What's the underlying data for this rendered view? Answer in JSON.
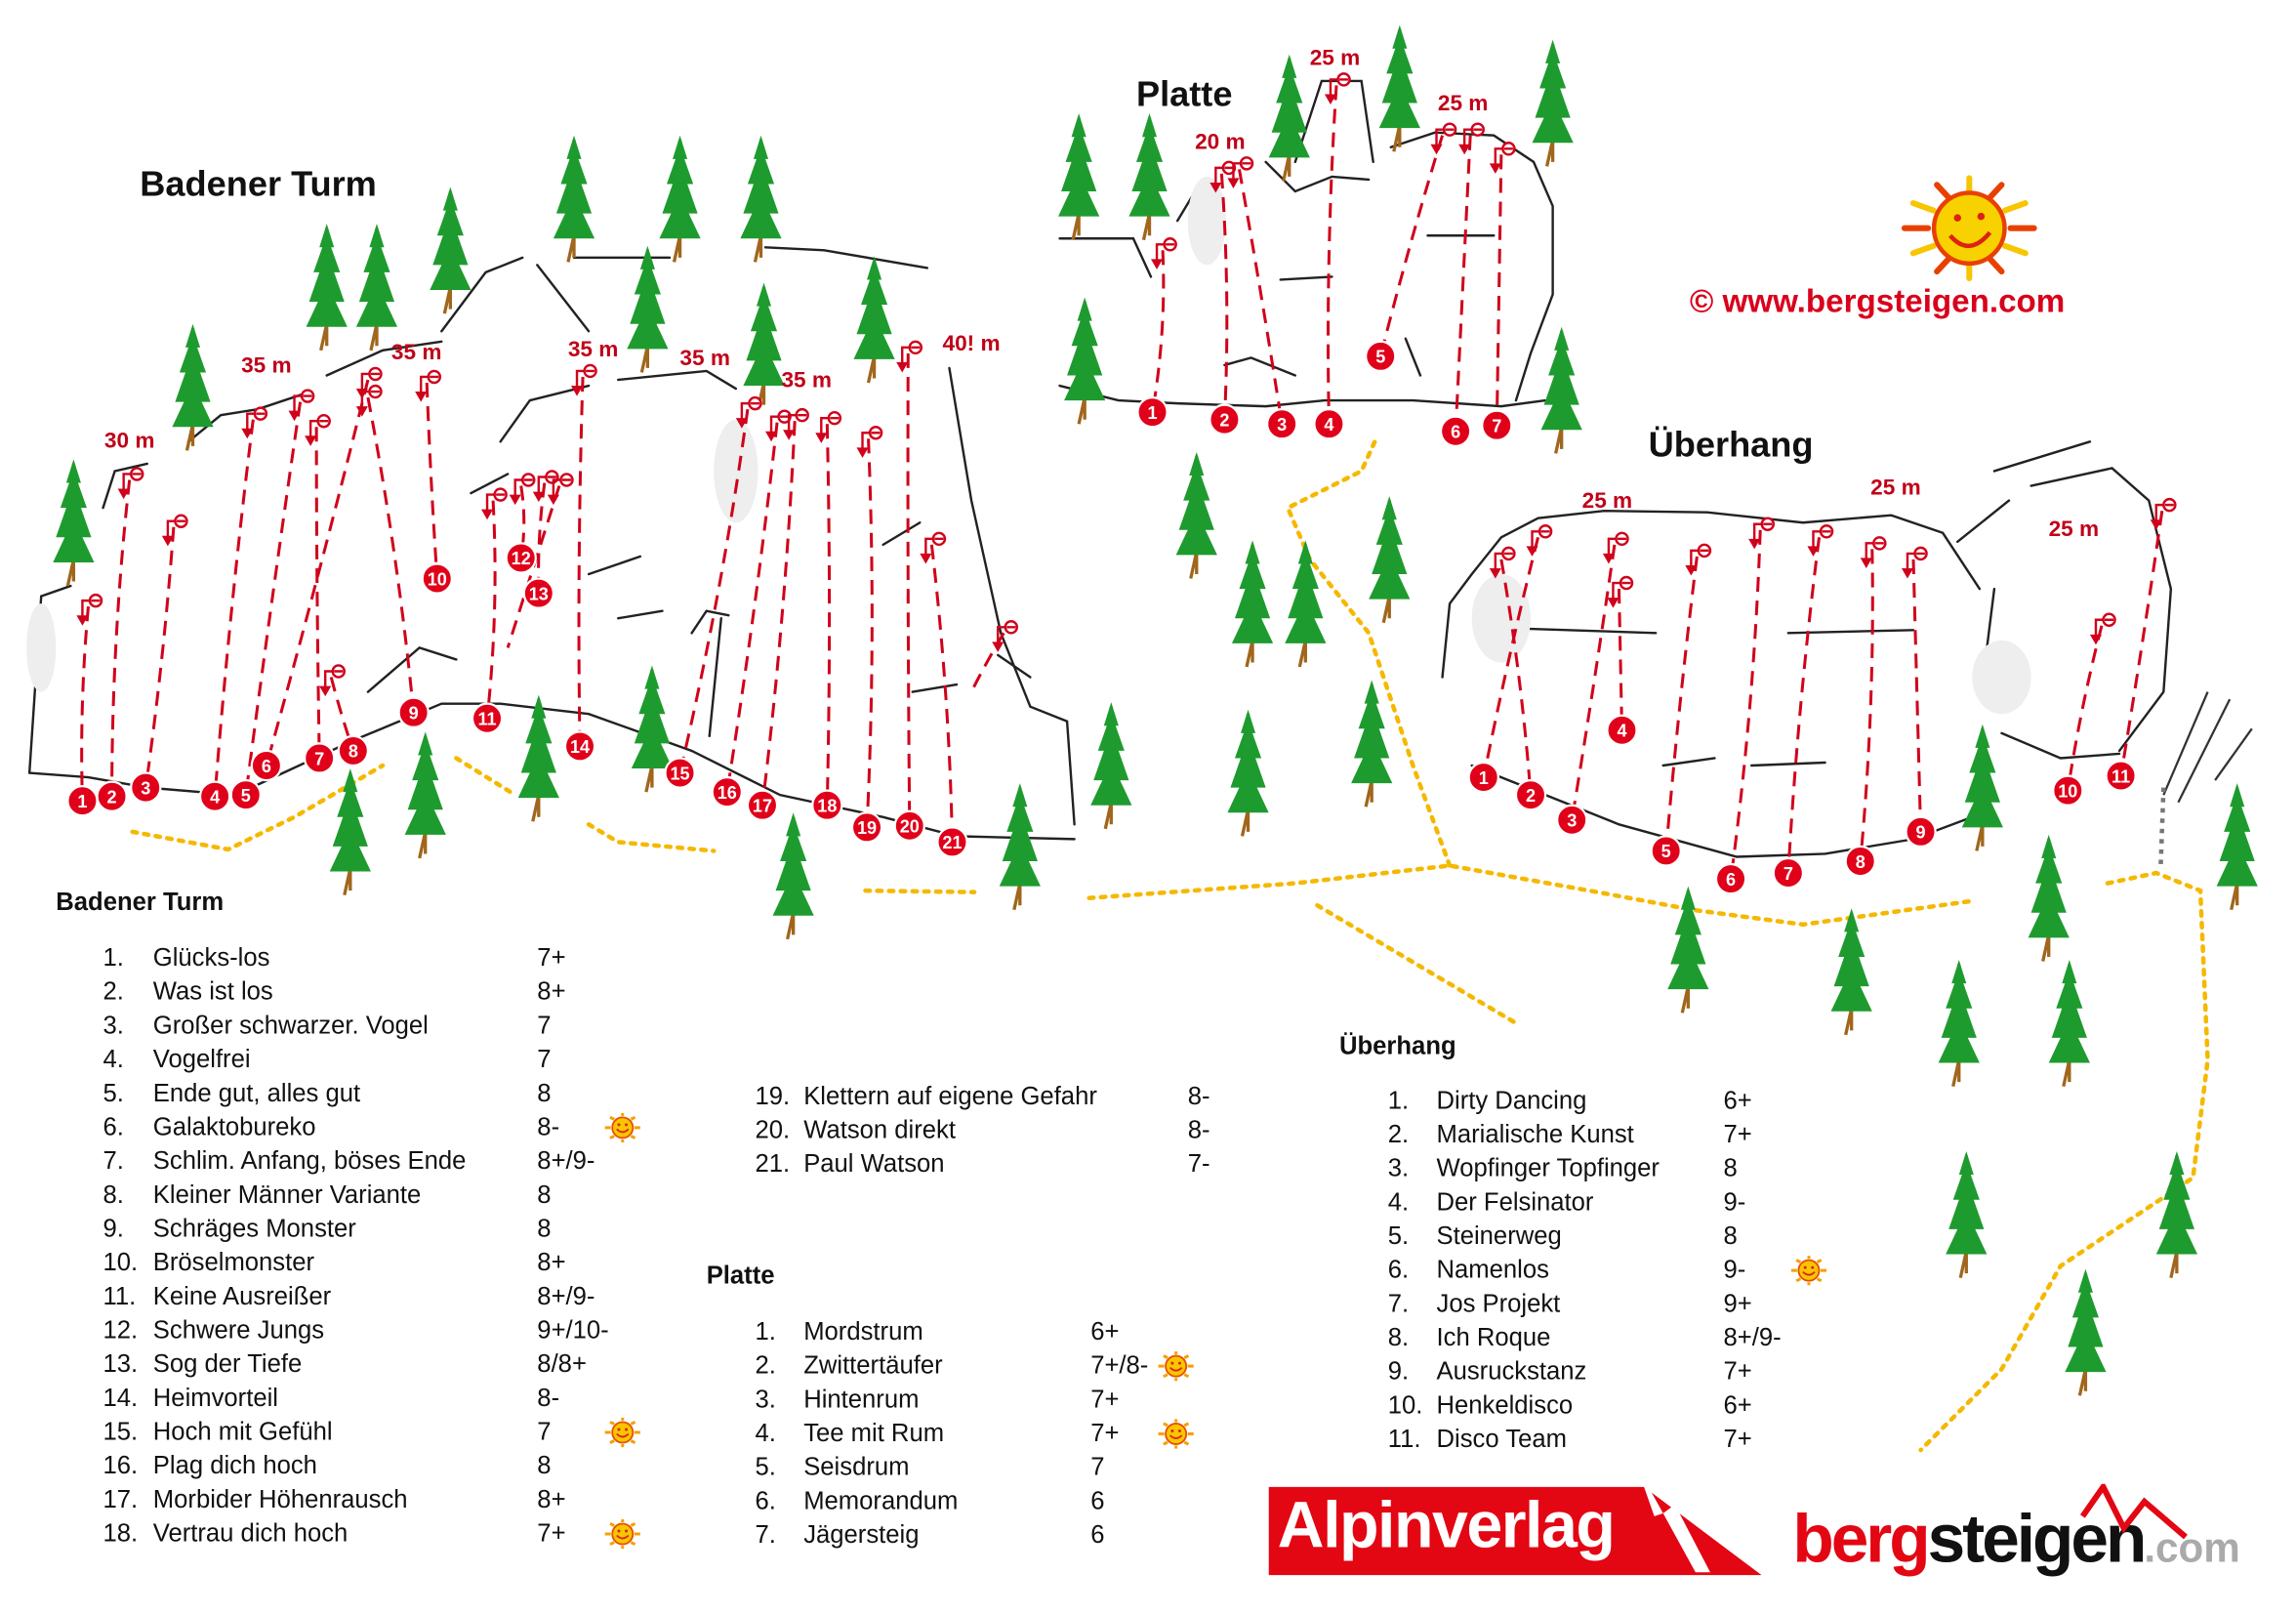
{
  "titles": {
    "badener": "Badener Turm",
    "platte": "Platte",
    "ueberhang": "Überhang"
  },
  "copyright": "©  www.bergsteigen.com",
  "colors": {
    "route": "#d0021b",
    "marker": "#e0001a",
    "path": "#f5b800",
    "tree": "#1e9b2e",
    "trunk": "#a0661c",
    "rock": "#222222"
  },
  "heights": {
    "badener": [
      "30 m",
      "35 m",
      "35 m",
      "35 m",
      "35 m",
      "35 m",
      "40! m"
    ],
    "platte": [
      "20 m",
      "25 m",
      "25 m"
    ],
    "ueberhang": [
      "25 m",
      "25 m",
      "25 m"
    ]
  },
  "markers": {
    "badener": [
      "1",
      "2",
      "3",
      "4",
      "5",
      "6",
      "7",
      "8",
      "9",
      "10",
      "11",
      "12",
      "13",
      "14",
      "15",
      "16",
      "17",
      "18",
      "19",
      "20",
      "21"
    ],
    "platte": [
      "1",
      "2",
      "3",
      "4",
      "5",
      "6",
      "7"
    ],
    "ueberhang": [
      "1",
      "2",
      "3",
      "4",
      "5",
      "6",
      "7",
      "8",
      "9",
      "10",
      "11"
    ]
  },
  "lists": {
    "badener": {
      "header": "Badener Turm",
      "routes": [
        {
          "n": "1.",
          "name": "Glücks-los",
          "grade": "7+"
        },
        {
          "n": "2.",
          "name": "Was ist los",
          "grade": "8+"
        },
        {
          "n": "3.",
          "name": "Großer schwarzer. Vogel",
          "grade": "7"
        },
        {
          "n": "4.",
          "name": "Vogelfrei",
          "grade": "7"
        },
        {
          "n": "5.",
          "name": "Ende gut, alles gut",
          "grade": "8"
        },
        {
          "n": "6.",
          "name": "Galaktobureko",
          "grade": "8-",
          "sun": true
        },
        {
          "n": "7.",
          "name": "Schlim. Anfang, böses Ende",
          "grade": "8+/9-"
        },
        {
          "n": "8.",
          "name": "Kleiner Männer Variante",
          "grade": "8"
        },
        {
          "n": "9.",
          "name": "Schräges Monster",
          "grade": "8"
        },
        {
          "n": "10.",
          "name": "Bröselmonster",
          "grade": "8+"
        },
        {
          "n": "11.",
          "name": "Keine Ausreißer",
          "grade": "8+/9-"
        },
        {
          "n": "12.",
          "name": "Schwere Jungs",
          "grade": "9+/10-"
        },
        {
          "n": "13.",
          "name": "Sog der Tiefe",
          "grade": "8/8+"
        },
        {
          "n": "14.",
          "name": "Heimvorteil",
          "grade": "8-"
        },
        {
          "n": "15.",
          "name": "Hoch mit Gefühl",
          "grade": "7",
          "sun": true
        },
        {
          "n": "16.",
          "name": "Plag dich hoch",
          "grade": "8"
        },
        {
          "n": "17.",
          "name": "Morbider Höhenrausch",
          "grade": "8+"
        },
        {
          "n": "18.",
          "name": "Vertrau dich hoch",
          "grade": "7+",
          "sun": true
        },
        {
          "n": "19.",
          "name": "Klettern auf eigene Gefahr",
          "grade": "8-"
        },
        {
          "n": "20.",
          "name": "Watson direkt",
          "grade": "8-"
        },
        {
          "n": "21.",
          "name": "Paul Watson",
          "grade": "7-"
        }
      ]
    },
    "platte": {
      "header": "Platte",
      "routes": [
        {
          "n": "1.",
          "name": "Mordstrum",
          "grade": "6+"
        },
        {
          "n": "2.",
          "name": "Zwittertäufer",
          "grade": "7+/8-",
          "sun": true
        },
        {
          "n": "3.",
          "name": "Hintenrum",
          "grade": "7+"
        },
        {
          "n": "4.",
          "name": "Tee mit Rum",
          "grade": "7+",
          "sun": true
        },
        {
          "n": "5.",
          "name": "Seisdrum",
          "grade": "7"
        },
        {
          "n": "6.",
          "name": "Memorandum",
          "grade": "6"
        },
        {
          "n": "7.",
          "name": "Jägersteig",
          "grade": "6"
        }
      ]
    },
    "ueberhang": {
      "header": "Überhang",
      "routes": [
        {
          "n": "1.",
          "name": "Dirty Dancing",
          "grade": "6+"
        },
        {
          "n": "2.",
          "name": "Marialische Kunst",
          "grade": "7+"
        },
        {
          "n": "3.",
          "name": "Wopfinger Topfinger",
          "grade": "8"
        },
        {
          "n": "4.",
          "name": "Der Felsinator",
          "grade": "9-"
        },
        {
          "n": "5.",
          "name": "Steinerweg",
          "grade": "8"
        },
        {
          "n": "6.",
          "name": "Namenlos",
          "grade": "9-",
          "sun": true
        },
        {
          "n": "7.",
          "name": "Jos Projekt",
          "grade": "9+"
        },
        {
          "n": "8.",
          "name": "Ich Roque",
          "grade": "8+/9-"
        },
        {
          "n": "9.",
          "name": "Ausruckstanz",
          "grade": "7+"
        },
        {
          "n": "10.",
          "name": "Henkeldisco",
          "grade": "6+"
        },
        {
          "n": "11.",
          "name": "Disco Team",
          "grade": "7+"
        }
      ]
    }
  },
  "icons": {
    "sun": "sun-smiley-icon",
    "bolt": "belay-anchor-icon",
    "tree": "tree-icon"
  },
  "logos": {
    "alpinverlag": "Alpinverlag",
    "bergsteigen_red": "berg",
    "bergsteigen_black": "steigen",
    "bergsteigen_com": ".com"
  }
}
